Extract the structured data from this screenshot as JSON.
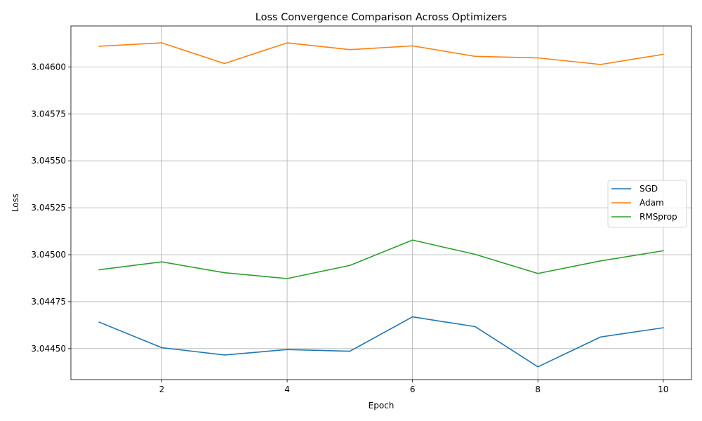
{
  "chart_data": {
    "type": "line",
    "title": "Loss Convergence Comparison Across Optimizers",
    "xlabel": "Epoch",
    "ylabel": "Loss",
    "x": [
      1,
      2,
      3,
      4,
      5,
      6,
      7,
      8,
      9,
      10
    ],
    "xlim": [
      0.55,
      10.45
    ],
    "ylim": [
      3.044335,
      3.046218
    ],
    "x_ticks": [
      2,
      4,
      6,
      8,
      10
    ],
    "x_tick_labels": [
      "2",
      "4",
      "6",
      "8",
      "10"
    ],
    "y_ticks": [
      3.0445,
      3.04475,
      3.045,
      3.04525,
      3.0455,
      3.04575,
      3.046
    ],
    "y_tick_labels": [
      "3.04450",
      "3.04475",
      "3.04500",
      "3.04525",
      "3.04550",
      "3.04575",
      "3.04600"
    ],
    "grid": true,
    "legend_position": "center-right",
    "series": [
      {
        "name": "SGD",
        "color": "#1f77b4",
        "values": [
          3.044641,
          3.044505,
          3.044466,
          3.044495,
          3.044486,
          3.044669,
          3.044617,
          3.044403,
          3.044562,
          3.044611
        ]
      },
      {
        "name": "Adam",
        "color": "#ff7f0e",
        "values": [
          3.04611,
          3.046128,
          3.046018,
          3.046128,
          3.046092,
          3.046112,
          3.046056,
          3.046048,
          3.046013,
          3.046067
        ]
      },
      {
        "name": "RMSprop",
        "color": "#2ca02c",
        "values": [
          3.04492,
          3.044962,
          3.044904,
          3.044873,
          3.044943,
          3.045078,
          3.045002,
          3.0449,
          3.044967,
          3.045021
        ]
      }
    ]
  }
}
